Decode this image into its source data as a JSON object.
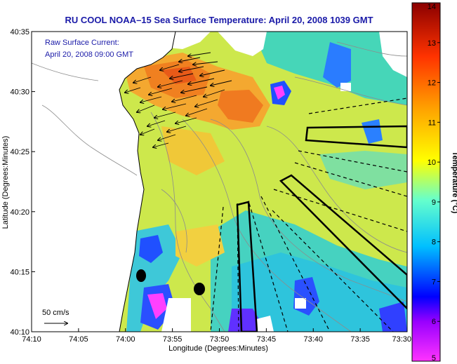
{
  "title": "RU COOL  NOAA–15  Sea Surface Temperature:  April 20, 2008 1039 GMT",
  "legend": {
    "line1": "Raw Surface Current:",
    "line2": "April 20, 2008 09:00 GMT"
  },
  "scale_bar": {
    "label": "50 cm/s"
  },
  "x_axis": {
    "label": "Longitude (Degrees:Minutes)",
    "ticks": [
      "74:10",
      "74:05",
      "74:00",
      "73:55",
      "73:50",
      "73:45",
      "73:40",
      "73:35",
      "73:30"
    ]
  },
  "y_axis": {
    "label": "Latitude (Degrees:Minutes)",
    "ticks": [
      "40:35",
      "40:30",
      "40:25",
      "40:20",
      "40:15",
      "40:10"
    ]
  },
  "colorbar": {
    "label": "Temperature (°C)",
    "ticks": [
      "14",
      "13",
      "12",
      "11",
      "10",
      "9",
      "8",
      "7",
      "6",
      "5"
    ],
    "min": 5,
    "max": 14,
    "colors": [
      "#ff00ff",
      "#0000ff",
      "#00bfff",
      "#7fffd4",
      "#ffff00",
      "#ffa500",
      "#ff4500",
      "#8b0000"
    ]
  },
  "colors": {
    "title": "#1a1aa8",
    "land": "#ffffff",
    "water_mid": "#d4e84a",
    "warm_plume": "#f08c2a"
  }
}
